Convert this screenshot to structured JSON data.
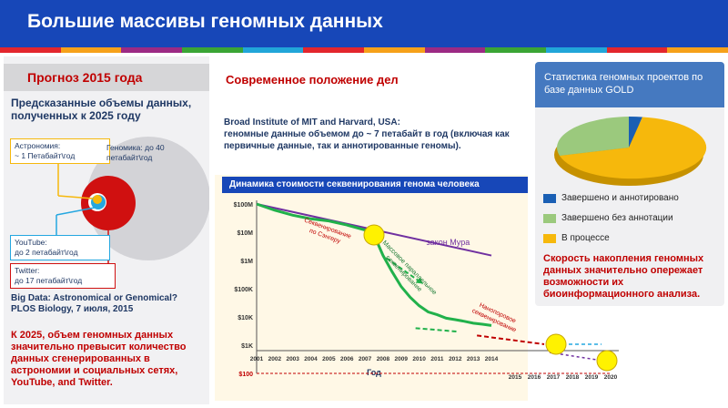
{
  "header": {
    "title": "Большие массивы геномных данных"
  },
  "stripe_colors": [
    "#e3262d",
    "#f6a11a",
    "#9c2a84",
    "#3aa535",
    "#21a6d9",
    "#e3262d",
    "#f6a11a",
    "#9c2a84",
    "#3aa535",
    "#21a6d9",
    "#e3262d",
    "#f6a11a"
  ],
  "left": {
    "title": "Прогноз 2015 года",
    "subtitle": "Предсказанные объемы данных, полученных к 2025 году",
    "astronomy": {
      "line1": "Астрономия:",
      "line2": "~ 1 Петабайт\\год"
    },
    "genomics": {
      "line1": "Геномика: до 40",
      "line2": "петабайт\\год"
    },
    "youtube": {
      "line1": "YouTube:",
      "line2": "до 2 петабайт\\год"
    },
    "twitter": {
      "line1": "Twitter:",
      "line2": "до 17 петабайт\\год"
    },
    "citation": "Big Data: Astronomical or Genomical? PLOS Biology, 7 июля, 2015",
    "conclusion": "К 2025, объем геномных данных значительно превысит количество данных сгенерированных в астрономии и социальных сетях, YouTube, and Twitter."
  },
  "middle": {
    "title": "Современное положение дел",
    "broad_line1": "Broad Institute of MIT and Harvard, USA:",
    "broad_line2": "геномные данные объемом до ~ 7 петабайт в год  (включая как первичные данные, так и аннотированные геномы)."
  },
  "chart": {
    "title": "Динамика стоимости секвенирования генома человека",
    "xlabel": "Год",
    "y_ticks": [
      "$100M",
      "$10M",
      "$1M",
      "$100K",
      "$10K",
      "$1K",
      "$100"
    ],
    "x_ticks": [
      "2001",
      "2002",
      "2003",
      "2004",
      "2005",
      "2006",
      "2007",
      "2008",
      "2009",
      "2010",
      "2011",
      "2012",
      "2013",
      "2014"
    ],
    "x_ticks_future": [
      "2015",
      "2016",
      "2017",
      "2018",
      "2019",
      "2020"
    ],
    "label_sanger": "Секвенирование по Сэнгеру",
    "label_moore": "закон Мура",
    "label_mass": "Массовое параллельное секвенирование",
    "label_nano": "Нанопоровое секвенирование"
  },
  "chart_data": {
    "type": "line",
    "title": "Динамика стоимости секвенирования генома человека",
    "xlabel": "Год",
    "ylabel": "",
    "y_scale": "log",
    "ylim": [
      100,
      100000000
    ],
    "series": [
      {
        "name": "закон Мура",
        "x": [
          2001,
          2014
        ],
        "values": [
          100000000,
          1500000
        ]
      },
      {
        "name": "",
        "x": [
          2001,
          2002,
          2003,
          2004,
          2005,
          2006,
          2007,
          2007.5,
          2008,
          2008.5,
          2009,
          2009.5,
          2010,
          2010.5,
          2011,
          2011.5,
          2012,
          2012.5,
          2013,
          2013.5,
          2014
        ],
        "values": [
          100000000,
          60000000,
          40000000,
          30000000,
          25000000,
          18000000,
          12000000,
          8000000,
          1500000,
          400000,
          120000,
          50000,
          25000,
          15000,
          12000,
          9000,
          8000,
          7000,
          6000,
          5500,
          5000
        ]
      }
    ]
  },
  "stats": {
    "title": "Статистика геномных проектов по базе данных GOLD",
    "legend": [
      {
        "label": "Завершено и аннотировано",
        "color": "#1a5fb4",
        "value": 5
      },
      {
        "label": "Завершено без аннотации",
        "color": "#9bc97d",
        "value": 30
      },
      {
        "label": "В процессе",
        "color": "#f6b80c",
        "value": 65
      }
    ],
    "note": "Скорость накопления геномных данных значительно опережает возможности их биоинформационного анализа."
  }
}
